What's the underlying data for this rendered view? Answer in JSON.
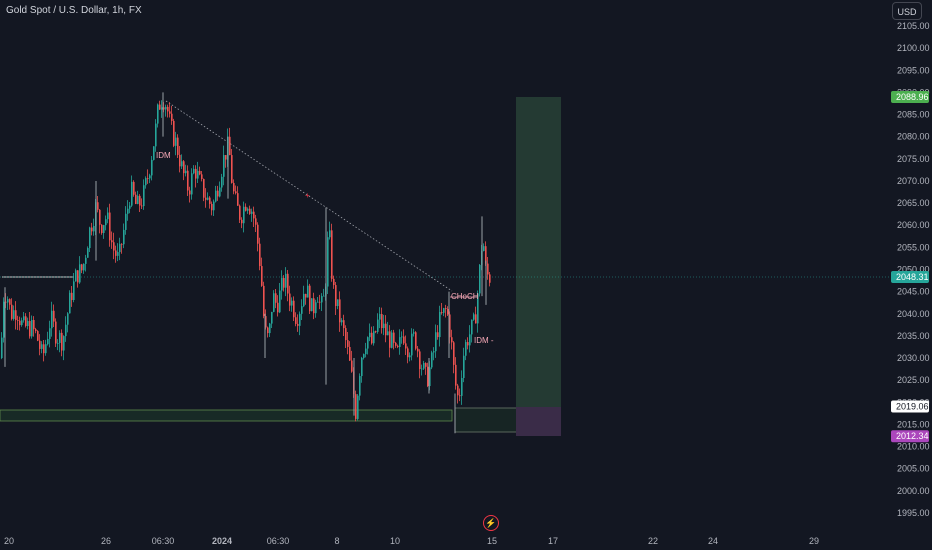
{
  "header": {
    "title": "Gold Spot / U.S. Dollar, 1h, FX",
    "currency": "USD"
  },
  "colors": {
    "background": "#131722",
    "up": "#26a69a",
    "down": "#ef5350",
    "axis_text": "#b2b5be",
    "zone_green": "#2e5e3e",
    "zone_purple": "#3c2a4e",
    "annotation": "#f7a9b7"
  },
  "icons": {
    "logo": "tradingview-flash-icon"
  },
  "chart_data": {
    "type": "candlestick",
    "symbol": "Gold Spot / U.S. Dollar",
    "interval": "1h",
    "source": "FX",
    "ylim": [
      1991,
      2108
    ],
    "y_ticks": [
      1995,
      2000,
      2005,
      2010,
      2015,
      2020,
      2025,
      2030,
      2035,
      2040,
      2045,
      2050,
      2055,
      2060,
      2065,
      2070,
      2075,
      2080,
      2085,
      2090,
      2095,
      2100,
      2105
    ],
    "x_ticks": [
      "20",
      "26",
      "06:30",
      "2024",
      "06:30",
      "8",
      "10",
      "15",
      "17",
      "22",
      "24",
      "29"
    ],
    "current_price": 2048.31,
    "price_labels": [
      {
        "name": "take-profit",
        "value": 2088.96,
        "text": "2088.96"
      },
      {
        "name": "current",
        "value": 2048.31,
        "text": "2048.31"
      },
      {
        "name": "entry",
        "value": 2019.06,
        "text": "2019.06"
      },
      {
        "name": "stop-loss",
        "value": 2012.34,
        "text": "2012.34"
      }
    ],
    "annotations": [
      "IDM",
      "CHoCH",
      "IDM -",
      "+"
    ],
    "path_points": [
      [
        0,
        2030
      ],
      [
        3,
        2044
      ],
      [
        6,
        2045
      ],
      [
        10,
        2040
      ],
      [
        16,
        2041
      ],
      [
        22,
        2037
      ],
      [
        30,
        2037
      ],
      [
        36,
        2035
      ],
      [
        42,
        2030
      ],
      [
        50,
        2039
      ],
      [
        56,
        2035
      ],
      [
        62,
        2034
      ],
      [
        70,
        2044
      ],
      [
        76,
        2049
      ],
      [
        82,
        2050
      ],
      [
        88,
        2058
      ],
      [
        95,
        2064
      ],
      [
        100,
        2060
      ],
      [
        106,
        2062
      ],
      [
        112,
        2055
      ],
      [
        118,
        2052
      ],
      [
        124,
        2060
      ],
      [
        130,
        2068
      ],
      [
        136,
        2064
      ],
      [
        142,
        2066
      ],
      [
        148,
        2072
      ],
      [
        154,
        2080
      ],
      [
        158,
        2087
      ],
      [
        162,
        2089
      ],
      [
        166,
        2087
      ],
      [
        170,
        2082
      ],
      [
        176,
        2078
      ],
      [
        182,
        2072
      ],
      [
        188,
        2068
      ],
      [
        194,
        2073
      ],
      [
        200,
        2069
      ],
      [
        206,
        2066
      ],
      [
        212,
        2064
      ],
      [
        218,
        2070
      ],
      [
        224,
        2076
      ],
      [
        228,
        2078
      ],
      [
        232,
        2068
      ],
      [
        236,
        2064
      ],
      [
        240,
        2062
      ],
      [
        246,
        2066
      ],
      [
        252,
        2063
      ],
      [
        256,
        2058
      ],
      [
        260,
        2050
      ],
      [
        264,
        2036
      ],
      [
        268,
        2034
      ],
      [
        272,
        2044
      ],
      [
        276,
        2042
      ],
      [
        280,
        2045
      ],
      [
        284,
        2048
      ],
      [
        288,
        2044
      ],
      [
        292,
        2042
      ],
      [
        296,
        2039
      ],
      [
        300,
        2042
      ],
      [
        304,
        2046
      ],
      [
        308,
        2044
      ],
      [
        312,
        2040
      ],
      [
        316,
        2046
      ],
      [
        320,
        2041
      ],
      [
        324,
        2044
      ],
      [
        328,
        2060
      ],
      [
        332,
        2046
      ],
      [
        336,
        2042
      ],
      [
        340,
        2038
      ],
      [
        344,
        2035
      ],
      [
        348,
        2030
      ],
      [
        352,
        2024
      ],
      [
        355,
        2018
      ],
      [
        360,
        2030
      ],
      [
        366,
        2035
      ],
      [
        372,
        2033
      ],
      [
        378,
        2039
      ],
      [
        384,
        2036
      ],
      [
        390,
        2034
      ],
      [
        396,
        2030
      ],
      [
        402,
        2036
      ],
      [
        408,
        2032
      ],
      [
        414,
        2035
      ],
      [
        420,
        2029
      ],
      [
        426,
        2025
      ],
      [
        432,
        2030
      ],
      [
        436,
        2036
      ],
      [
        440,
        2039
      ],
      [
        446,
        2041
      ],
      [
        450,
        2035
      ],
      [
        454,
        2025
      ],
      [
        458,
        2020
      ],
      [
        462,
        2030
      ],
      [
        466,
        2034
      ],
      [
        470,
        2036
      ],
      [
        474,
        2038
      ],
      [
        478,
        2047
      ],
      [
        482,
        2058
      ],
      [
        485,
        2050
      ],
      [
        488,
        2048
      ],
      [
        491,
        2049
      ]
    ],
    "spikes": [
      {
        "x": 5,
        "hi": 2046,
        "lo": 2028
      },
      {
        "x": 96,
        "hi": 2070,
        "lo": 2052
      },
      {
        "x": 163,
        "hi": 2090,
        "lo": 2080
      },
      {
        "x": 228,
        "hi": 2080,
        "lo": 2066
      },
      {
        "x": 265,
        "hi": 2040,
        "lo": 2030
      },
      {
        "x": 326,
        "hi": 2064,
        "lo": 2024
      },
      {
        "x": 354,
        "hi": 2030,
        "lo": 2017
      },
      {
        "x": 429,
        "hi": 2030,
        "lo": 2022
      },
      {
        "x": 449,
        "hi": 2045,
        "lo": 2030
      },
      {
        "x": 455,
        "hi": 2022,
        "lo": 2013
      },
      {
        "x": 482,
        "hi": 2062,
        "lo": 2044
      },
      {
        "x": 486,
        "hi": 2052,
        "lo": 2042
      }
    ]
  }
}
